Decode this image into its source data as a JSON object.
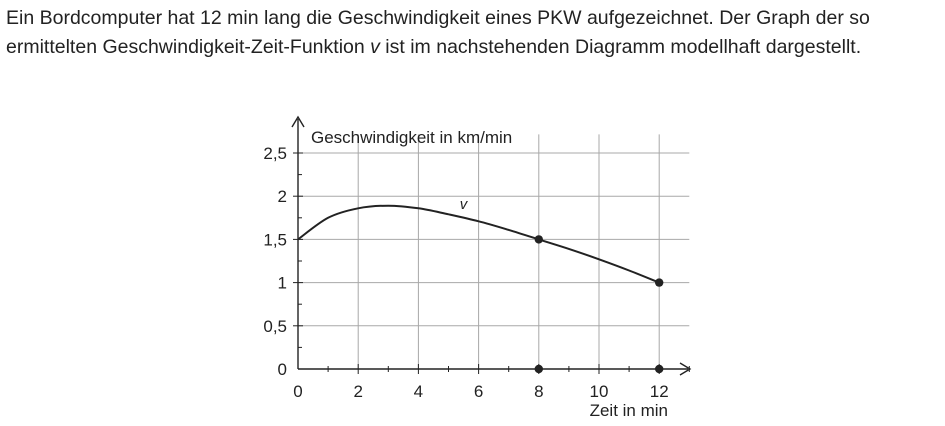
{
  "intro": {
    "part1": "Ein Bordcomputer hat 12 min lang die Geschwindigkeit eines PKW aufgezeichnet. Der Graph der so ermittelten Geschwindigkeit-Zeit-Funktion ",
    "var": "v",
    "part2": " ist im nachstehenden Diagramm modellhaft dargestellt."
  },
  "chart_data": {
    "type": "line",
    "title": "",
    "xlabel": "Zeit in min",
    "ylabel": "Geschwindigkeit in km/min",
    "xlim": [
      0,
      13
    ],
    "ylim": [
      0,
      2.75
    ],
    "x_ticks": [
      0,
      2,
      4,
      6,
      8,
      10,
      12
    ],
    "x_tick_labels": [
      "0",
      "2",
      "4",
      "6",
      "8",
      "10",
      "12"
    ],
    "y_ticks": [
      0,
      0.5,
      1,
      1.5,
      2,
      2.5
    ],
    "y_tick_labels": [
      "0",
      "0,5",
      "1",
      "1,5",
      "2",
      "2,5"
    ],
    "grid": true,
    "series": [
      {
        "name": "v",
        "x": [
          0,
          1,
          2,
          3,
          4,
          5,
          6,
          7,
          8,
          9,
          10,
          11,
          12
        ],
        "y": [
          1.5,
          1.75,
          1.86,
          1.89,
          1.86,
          1.79,
          1.71,
          1.61,
          1.5,
          1.39,
          1.27,
          1.14,
          1.0
        ],
        "color": "#222222"
      }
    ],
    "marked_points": [
      {
        "x": 8,
        "y": 1.5
      },
      {
        "x": 12,
        "y": 1
      },
      {
        "x": 8,
        "y": 0
      },
      {
        "x": 12,
        "y": 0
      }
    ]
  }
}
